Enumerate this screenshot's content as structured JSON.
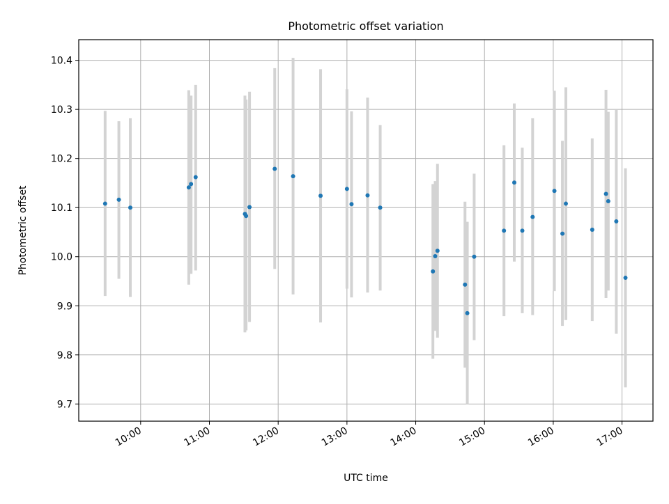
{
  "chart_data": {
    "type": "scatter",
    "title": "Photometric offset variation",
    "xlabel": "UTC time",
    "ylabel": "Photometric offset",
    "xlim": [
      "09:06",
      "17:27"
    ],
    "ylim": [
      9.665,
      10.442
    ],
    "x_ticks": [
      "10:00",
      "11:00",
      "12:00",
      "13:00",
      "14:00",
      "15:00",
      "16:00",
      "17:00"
    ],
    "y_ticks": [
      "9.7",
      "9.8",
      "9.9",
      "10.0",
      "10.1",
      "10.2",
      "10.3",
      "10.4"
    ],
    "grid": true,
    "colors": {
      "point": "#1f77b4",
      "errorbar": "#d3d3d3",
      "grid": "#b0b0b0"
    },
    "points": [
      {
        "x": "09:29",
        "y": 10.108,
        "ylow": 9.92,
        "yhigh": 10.297
      },
      {
        "x": "09:41",
        "y": 10.116,
        "ylow": 9.955,
        "yhigh": 10.276
      },
      {
        "x": "09:51",
        "y": 10.1,
        "ylow": 9.918,
        "yhigh": 10.282
      },
      {
        "x": "10:42",
        "y": 10.141,
        "ylow": 9.943,
        "yhigh": 10.339
      },
      {
        "x": "10:44",
        "y": 10.148,
        "ylow": 9.965,
        "yhigh": 10.328
      },
      {
        "x": "10:48",
        "y": 10.162,
        "ylow": 9.972,
        "yhigh": 10.35
      },
      {
        "x": "11:31",
        "y": 10.087,
        "ylow": 9.846,
        "yhigh": 10.328
      },
      {
        "x": "11:32",
        "y": 10.083,
        "ylow": 9.85,
        "yhigh": 10.32
      },
      {
        "x": "11:35",
        "y": 10.101,
        "ylow": 9.867,
        "yhigh": 10.336
      },
      {
        "x": "11:57",
        "y": 10.179,
        "ylow": 9.975,
        "yhigh": 10.384
      },
      {
        "x": "12:13",
        "y": 10.164,
        "ylow": 9.923,
        "yhigh": 10.405
      },
      {
        "x": "12:37",
        "y": 10.124,
        "ylow": 9.866,
        "yhigh": 10.382
      },
      {
        "x": "13:00",
        "y": 10.138,
        "ylow": 9.935,
        "yhigh": 10.341
      },
      {
        "x": "13:04",
        "y": 10.107,
        "ylow": 9.917,
        "yhigh": 10.296
      },
      {
        "x": "13:18",
        "y": 10.125,
        "ylow": 9.927,
        "yhigh": 10.324
      },
      {
        "x": "13:29",
        "y": 10.1,
        "ylow": 9.931,
        "yhigh": 10.268
      },
      {
        "x": "14:15",
        "y": 9.97,
        "ylow": 9.792,
        "yhigh": 10.148
      },
      {
        "x": "14:17",
        "y": 10.001,
        "ylow": 9.849,
        "yhigh": 10.154
      },
      {
        "x": "14:19",
        "y": 10.012,
        "ylow": 9.835,
        "yhigh": 10.189
      },
      {
        "x": "14:43",
        "y": 9.943,
        "ylow": 9.774,
        "yhigh": 10.112
      },
      {
        "x": "14:45",
        "y": 9.885,
        "ylow": 9.7,
        "yhigh": 10.071
      },
      {
        "x": "14:51",
        "y": 10.0,
        "ylow": 9.83,
        "yhigh": 10.169
      },
      {
        "x": "15:17",
        "y": 10.053,
        "ylow": 9.879,
        "yhigh": 10.227
      },
      {
        "x": "15:26",
        "y": 10.151,
        "ylow": 9.99,
        "yhigh": 10.312
      },
      {
        "x": "15:33",
        "y": 10.053,
        "ylow": 9.885,
        "yhigh": 10.222
      },
      {
        "x": "15:42",
        "y": 10.081,
        "ylow": 9.881,
        "yhigh": 10.282
      },
      {
        "x": "16:01",
        "y": 10.134,
        "ylow": 9.93,
        "yhigh": 10.338
      },
      {
        "x": "16:08",
        "y": 10.047,
        "ylow": 9.859,
        "yhigh": 10.236
      },
      {
        "x": "16:11",
        "y": 10.108,
        "ylow": 9.871,
        "yhigh": 10.345
      },
      {
        "x": "16:34",
        "y": 10.055,
        "ylow": 9.869,
        "yhigh": 10.241
      },
      {
        "x": "16:46",
        "y": 10.128,
        "ylow": 9.916,
        "yhigh": 10.34
      },
      {
        "x": "16:48",
        "y": 10.113,
        "ylow": 9.931,
        "yhigh": 10.295
      },
      {
        "x": "16:55",
        "y": 10.072,
        "ylow": 9.843,
        "yhigh": 10.3
      },
      {
        "x": "17:03",
        "y": 9.957,
        "ylow": 9.734,
        "yhigh": 10.18
      }
    ]
  }
}
